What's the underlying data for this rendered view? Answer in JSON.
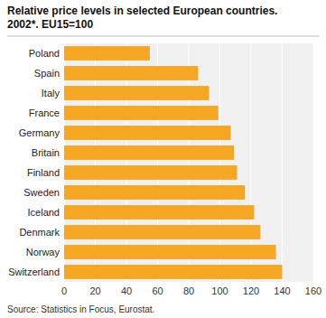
{
  "chart_data": {
    "type": "bar",
    "orientation": "horizontal",
    "title": "Relative price levels in selected European countries.\n2002*. EU15=100",
    "categories": [
      "Switzerland",
      "Norway",
      "Denmark",
      "Iceland",
      "Sweden",
      "Finland",
      "Britain",
      "Germany",
      "France",
      "Italy",
      "Spain",
      "Poland"
    ],
    "values": [
      140,
      136,
      126,
      122,
      116,
      111,
      109,
      107,
      99,
      93,
      86,
      55
    ],
    "color": "#F5A623",
    "xlim": [
      0,
      160
    ],
    "xticks": [
      0,
      20,
      40,
      60,
      80,
      100,
      120,
      140,
      160
    ],
    "grid": true,
    "annotations": [
      "Source: Statistics in Focus, Eurostat."
    ]
  }
}
